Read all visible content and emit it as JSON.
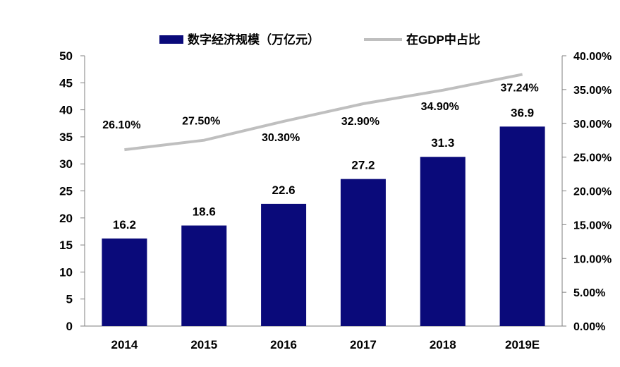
{
  "chart_data": {
    "type": "bar",
    "categories": [
      "2014",
      "2015",
      "2016",
      "2017",
      "2018",
      "2019E"
    ],
    "series": [
      {
        "name": "数字经济规模（万亿元）",
        "type": "bar",
        "axis": "left",
        "values": [
          16.2,
          18.6,
          22.6,
          27.2,
          31.3,
          36.9
        ],
        "labels": [
          "16.2",
          "18.6",
          "22.6",
          "27.2",
          "31.3",
          "36.9"
        ],
        "color": "#0a0a7a"
      },
      {
        "name": "在GDP中占比",
        "type": "line",
        "axis": "right",
        "values": [
          26.1,
          27.5,
          30.3,
          32.9,
          34.9,
          37.24
        ],
        "labels": [
          "26.10%",
          "27.50%",
          "30.30%",
          "32.90%",
          "34.90%",
          "37.24%"
        ],
        "color": "#bfbfbf"
      }
    ],
    "left_axis": {
      "ylim": [
        0,
        50
      ],
      "ticks": [
        "0",
        "5",
        "10",
        "15",
        "20",
        "25",
        "30",
        "35",
        "40",
        "45",
        "50"
      ]
    },
    "right_axis": {
      "ylim": [
        0,
        40
      ],
      "ticks": [
        "0.00%",
        "5.00%",
        "10.00%",
        "15.00%",
        "20.00%",
        "25.00%",
        "30.00%",
        "35.00%",
        "40.00%"
      ]
    },
    "legend": {
      "position": "top",
      "entries": [
        "数字经济规模（万亿元）",
        "在GDP中占比"
      ]
    },
    "grid": false
  }
}
